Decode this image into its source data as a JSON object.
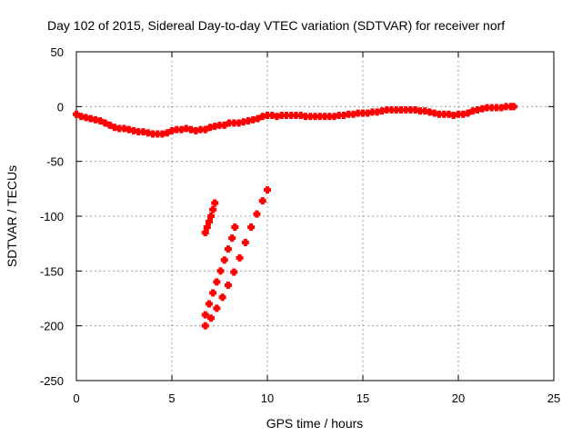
{
  "chart_data": {
    "type": "scatter",
    "title": "Day 102 of 2015, Sidereal Day-to-day VTEC variation (SDTVAR) for receiver norf",
    "xlabel": "GPS time / hours",
    "ylabel": "SDTVAR / TECUs",
    "xlim": [
      0,
      25
    ],
    "ylim": [
      -250,
      50
    ],
    "xticks": [
      0,
      5,
      10,
      15,
      20,
      25
    ],
    "yticks": [
      50,
      0,
      -50,
      -100,
      -150,
      -200,
      -250
    ],
    "grid": true,
    "legend": "none",
    "marker_color": "#ff0000",
    "series": [
      {
        "points": [
          [
            0.0,
            -7
          ],
          [
            0.25,
            -9
          ],
          [
            0.5,
            -10
          ],
          [
            0.75,
            -11
          ],
          [
            1.0,
            -12
          ],
          [
            1.25,
            -13
          ],
          [
            1.5,
            -15
          ],
          [
            1.75,
            -17
          ],
          [
            2.0,
            -19
          ],
          [
            2.25,
            -20
          ],
          [
            2.5,
            -20
          ],
          [
            2.75,
            -21
          ],
          [
            3.0,
            -22
          ],
          [
            3.25,
            -23
          ],
          [
            3.5,
            -23
          ],
          [
            3.75,
            -24
          ],
          [
            4.0,
            -25
          ],
          [
            4.25,
            -25
          ],
          [
            4.5,
            -25
          ],
          [
            4.75,
            -24
          ],
          [
            5.0,
            -22
          ],
          [
            5.25,
            -21
          ],
          [
            5.5,
            -21
          ],
          [
            5.75,
            -20
          ],
          [
            6.0,
            -21
          ],
          [
            6.25,
            -22
          ],
          [
            6.5,
            -21
          ],
          [
            6.75,
            -21
          ],
          [
            7.0,
            -19
          ],
          [
            7.25,
            -18
          ],
          [
            7.5,
            -17
          ],
          [
            7.75,
            -17
          ],
          [
            8.0,
            -15
          ],
          [
            8.25,
            -15
          ],
          [
            8.5,
            -15
          ],
          [
            8.75,
            -14
          ],
          [
            9.0,
            -13
          ],
          [
            9.25,
            -12
          ],
          [
            9.5,
            -11
          ],
          [
            9.75,
            -9
          ],
          [
            10.0,
            -8
          ],
          [
            10.25,
            -8
          ],
          [
            10.5,
            -9
          ],
          [
            10.75,
            -8
          ],
          [
            11.0,
            -8
          ],
          [
            11.25,
            -8
          ],
          [
            11.5,
            -8
          ],
          [
            11.75,
            -8
          ],
          [
            12.0,
            -9
          ],
          [
            12.25,
            -9
          ],
          [
            12.5,
            -9
          ],
          [
            12.75,
            -9
          ],
          [
            13.0,
            -9
          ],
          [
            13.25,
            -9
          ],
          [
            13.5,
            -9
          ],
          [
            13.75,
            -8
          ],
          [
            14.0,
            -8
          ],
          [
            14.25,
            -7
          ],
          [
            14.5,
            -7
          ],
          [
            14.75,
            -6
          ],
          [
            15.0,
            -6
          ],
          [
            15.25,
            -6
          ],
          [
            15.5,
            -5
          ],
          [
            15.75,
            -5
          ],
          [
            16.0,
            -4
          ],
          [
            16.25,
            -3
          ],
          [
            16.5,
            -3
          ],
          [
            16.75,
            -3
          ],
          [
            17.0,
            -3
          ],
          [
            17.25,
            -3
          ],
          [
            17.5,
            -3
          ],
          [
            17.75,
            -3
          ],
          [
            18.0,
            -4
          ],
          [
            18.25,
            -4
          ],
          [
            18.5,
            -5
          ],
          [
            18.75,
            -6
          ],
          [
            19.0,
            -7
          ],
          [
            19.25,
            -7
          ],
          [
            19.5,
            -7
          ],
          [
            19.75,
            -8
          ],
          [
            20.0,
            -7
          ],
          [
            20.25,
            -7
          ],
          [
            20.5,
            -6
          ],
          [
            20.75,
            -4
          ],
          [
            21.0,
            -3
          ],
          [
            21.25,
            -2
          ],
          [
            21.5,
            -1
          ],
          [
            21.75,
            -1
          ],
          [
            22.0,
            -1
          ],
          [
            22.25,
            -1
          ],
          [
            22.5,
            0
          ],
          [
            22.75,
            0
          ],
          [
            22.9,
            0
          ],
          [
            6.75,
            -115
          ],
          [
            6.85,
            -110
          ],
          [
            6.95,
            -105
          ],
          [
            7.05,
            -100
          ],
          [
            7.15,
            -94
          ],
          [
            7.25,
            -88
          ],
          [
            6.75,
            -190
          ],
          [
            6.95,
            -180
          ],
          [
            7.15,
            -170
          ],
          [
            7.35,
            -160
          ],
          [
            7.55,
            -150
          ],
          [
            7.75,
            -140
          ],
          [
            7.95,
            -130
          ],
          [
            8.15,
            -120
          ],
          [
            8.3,
            -110
          ],
          [
            6.75,
            -200
          ],
          [
            7.05,
            -193
          ],
          [
            7.35,
            -184
          ],
          [
            7.65,
            -174
          ],
          [
            7.95,
            -163
          ],
          [
            8.25,
            -151
          ],
          [
            8.55,
            -138
          ],
          [
            8.85,
            -124
          ],
          [
            9.15,
            -110
          ],
          [
            9.45,
            -98
          ],
          [
            9.75,
            -86
          ],
          [
            10.0,
            -76
          ]
        ]
      }
    ]
  }
}
